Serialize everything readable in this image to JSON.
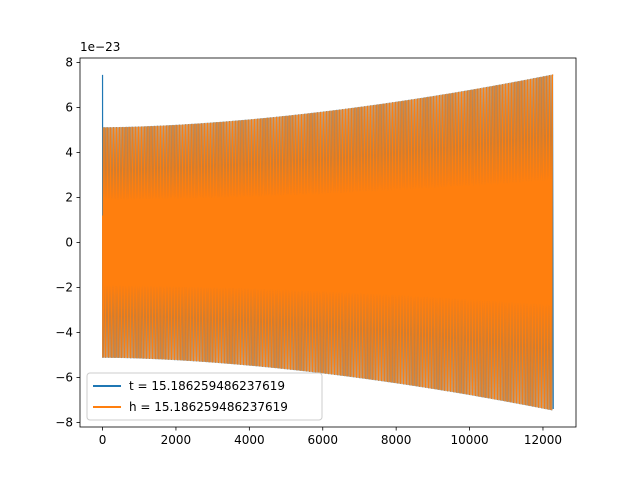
{
  "chart_data": {
    "type": "line",
    "title": "",
    "xlabel": "",
    "ylabel": "",
    "y_offset_label": "1e−23",
    "xlim": [
      -614,
      12900
    ],
    "ylim": [
      -8.2,
      8.2
    ],
    "x_ticks": [
      0,
      2000,
      4000,
      6000,
      8000,
      10000,
      12000
    ],
    "x_tick_labels": [
      "0",
      "2000",
      "4000",
      "6000",
      "8000",
      "10000",
      "12000"
    ],
    "y_ticks": [
      -8,
      -6,
      -4,
      -2,
      0,
      2,
      4,
      6,
      8
    ],
    "y_tick_labels": [
      "−8",
      "−6",
      "−4",
      "−2",
      "0",
      "2",
      "4",
      "6",
      "8"
    ],
    "grid": false,
    "legend_position": "lower-left",
    "series": [
      {
        "name": "t = 15.186259486237619",
        "color": "#1f77b4",
        "x_range": [
          0,
          12280
        ],
        "start_value": 7.45,
        "amplitude_start": 5.1,
        "amplitude_end": 7.45,
        "end_value": -7.4
      },
      {
        "name": "h = 15.186259486237619",
        "color": "#ff7f0e",
        "x_range": [
          0,
          12280
        ],
        "start_value": 1.2,
        "amplitude_start": 5.1,
        "amplitude_end": 7.45,
        "end_value": 7.45
      }
    ]
  }
}
